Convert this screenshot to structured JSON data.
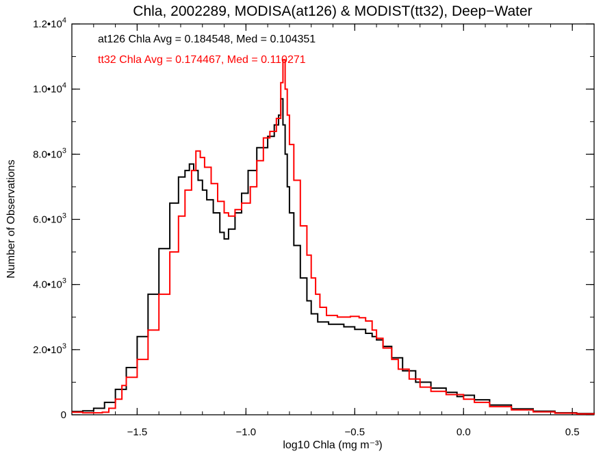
{
  "chart_data": {
    "type": "line",
    "step": true,
    "title": "Chla, 2002289, MODISA(at126) & MODIST(tt32), Deep−Water",
    "xlabel": "log10 Chla (mg m⁻³)",
    "ylabel": "Number of Observations",
    "xlim": [
      -1.8,
      0.6
    ],
    "ylim": [
      0,
      12000
    ],
    "x_ticks": [
      {
        "value": -1.5,
        "label": "−1.5"
      },
      {
        "value": -1.0,
        "label": "−1.0"
      },
      {
        "value": -0.5,
        "label": "−0.5"
      },
      {
        "value": 0.0,
        "label": "0.0"
      },
      {
        "value": 0.5,
        "label": "0.5"
      }
    ],
    "y_ticks": [
      {
        "value": 0,
        "mant": "0",
        "exp": ""
      },
      {
        "value": 2000,
        "mant": "2.0•10",
        "exp": "3"
      },
      {
        "value": 4000,
        "mant": "4.0•10",
        "exp": "3"
      },
      {
        "value": 6000,
        "mant": "6.0•10",
        "exp": "3"
      },
      {
        "value": 8000,
        "mant": "8.0•10",
        "exp": "3"
      },
      {
        "value": 10000,
        "mant": "1.0•10",
        "exp": "4"
      },
      {
        "value": 12000,
        "mant": "1.2•10",
        "exp": "4"
      }
    ],
    "grid": false,
    "annotations": [
      {
        "text": "at126 Chla Avg = 0.184548, Med = 0.104351",
        "color": "#000000"
      },
      {
        "text": "tt32 Chla Avg = 0.174467, Med = 0.110271",
        "color": "#ff0000"
      }
    ],
    "series": [
      {
        "color": "#000000",
        "points": [
          [
            -1.8,
            100
          ],
          [
            -1.75,
            120
          ],
          [
            -1.7,
            200
          ],
          [
            -1.65,
            380
          ],
          [
            -1.6,
            780
          ],
          [
            -1.55,
            1450
          ],
          [
            -1.5,
            2400
          ],
          [
            -1.45,
            3700
          ],
          [
            -1.4,
            5100
          ],
          [
            -1.35,
            6500
          ],
          [
            -1.31,
            7300
          ],
          [
            -1.28,
            7500
          ],
          [
            -1.26,
            7700
          ],
          [
            -1.24,
            7500
          ],
          [
            -1.22,
            7200
          ],
          [
            -1.2,
            6900
          ],
          [
            -1.18,
            6600
          ],
          [
            -1.15,
            6200
          ],
          [
            -1.12,
            5600
          ],
          [
            -1.1,
            5400
          ],
          [
            -1.08,
            5700
          ],
          [
            -1.05,
            6200
          ],
          [
            -1.02,
            6800
          ],
          [
            -0.99,
            7500
          ],
          [
            -0.95,
            8200
          ],
          [
            -0.9,
            8550
          ],
          [
            -0.87,
            8900
          ],
          [
            -0.85,
            9200
          ],
          [
            -0.84,
            9700
          ],
          [
            -0.83,
            8900
          ],
          [
            -0.82,
            8000
          ],
          [
            -0.81,
            7000
          ],
          [
            -0.8,
            6200
          ],
          [
            -0.78,
            5200
          ],
          [
            -0.75,
            4200
          ],
          [
            -0.72,
            3500
          ],
          [
            -0.7,
            3100
          ],
          [
            -0.67,
            2850
          ],
          [
            -0.62,
            2780
          ],
          [
            -0.55,
            2700
          ],
          [
            -0.5,
            2620
          ],
          [
            -0.45,
            2500
          ],
          [
            -0.42,
            2400
          ],
          [
            -0.4,
            2300
          ],
          [
            -0.37,
            2100
          ],
          [
            -0.33,
            1750
          ],
          [
            -0.28,
            1350
          ],
          [
            -0.22,
            1000
          ],
          [
            -0.15,
            820
          ],
          [
            -0.08,
            690
          ],
          [
            -0.03,
            560
          ],
          [
            0.0,
            600
          ],
          [
            0.05,
            460
          ],
          [
            0.12,
            300
          ],
          [
            0.22,
            180
          ],
          [
            0.32,
            110
          ],
          [
            0.42,
            60
          ],
          [
            0.52,
            35
          ],
          [
            0.6,
            20
          ]
        ]
      },
      {
        "color": "#ff0000",
        "points": [
          [
            -1.8,
            80
          ],
          [
            -1.75,
            60
          ],
          [
            -1.7,
            60
          ],
          [
            -1.66,
            80
          ],
          [
            -1.63,
            200
          ],
          [
            -1.6,
            480
          ],
          [
            -1.57,
            900
          ],
          [
            -1.55,
            1150
          ],
          [
            -1.5,
            1700
          ],
          [
            -1.45,
            2600
          ],
          [
            -1.4,
            3700
          ],
          [
            -1.35,
            5000
          ],
          [
            -1.31,
            6100
          ],
          [
            -1.28,
            6900
          ],
          [
            -1.25,
            7500
          ],
          [
            -1.23,
            8100
          ],
          [
            -1.21,
            7900
          ],
          [
            -1.19,
            7600
          ],
          [
            -1.16,
            7100
          ],
          [
            -1.13,
            6550
          ],
          [
            -1.1,
            6200
          ],
          [
            -1.08,
            6100
          ],
          [
            -1.05,
            6300
          ],
          [
            -1.02,
            6500
          ],
          [
            -0.98,
            7000
          ],
          [
            -0.95,
            7800
          ],
          [
            -0.92,
            8500
          ],
          [
            -0.89,
            8700
          ],
          [
            -0.86,
            9100
          ],
          [
            -0.84,
            10200
          ],
          [
            -0.83,
            10900
          ],
          [
            -0.82,
            10000
          ],
          [
            -0.81,
            9200
          ],
          [
            -0.8,
            8300
          ],
          [
            -0.78,
            7200
          ],
          [
            -0.75,
            5800
          ],
          [
            -0.72,
            4900
          ],
          [
            -0.7,
            4200
          ],
          [
            -0.68,
            3700
          ],
          [
            -0.66,
            3300
          ],
          [
            -0.63,
            3050
          ],
          [
            -0.58,
            3000
          ],
          [
            -0.52,
            3020
          ],
          [
            -0.48,
            2980
          ],
          [
            -0.45,
            2880
          ],
          [
            -0.42,
            2600
          ],
          [
            -0.4,
            2350
          ],
          [
            -0.37,
            2050
          ],
          [
            -0.33,
            1700
          ],
          [
            -0.3,
            1400
          ],
          [
            -0.25,
            1100
          ],
          [
            -0.2,
            850
          ],
          [
            -0.15,
            720
          ],
          [
            -0.08,
            620
          ],
          [
            0.0,
            480
          ],
          [
            0.05,
            380
          ],
          [
            0.12,
            250
          ],
          [
            0.22,
            150
          ],
          [
            0.32,
            90
          ],
          [
            0.42,
            50
          ],
          [
            0.52,
            25
          ],
          [
            0.6,
            15
          ]
        ]
      }
    ]
  }
}
